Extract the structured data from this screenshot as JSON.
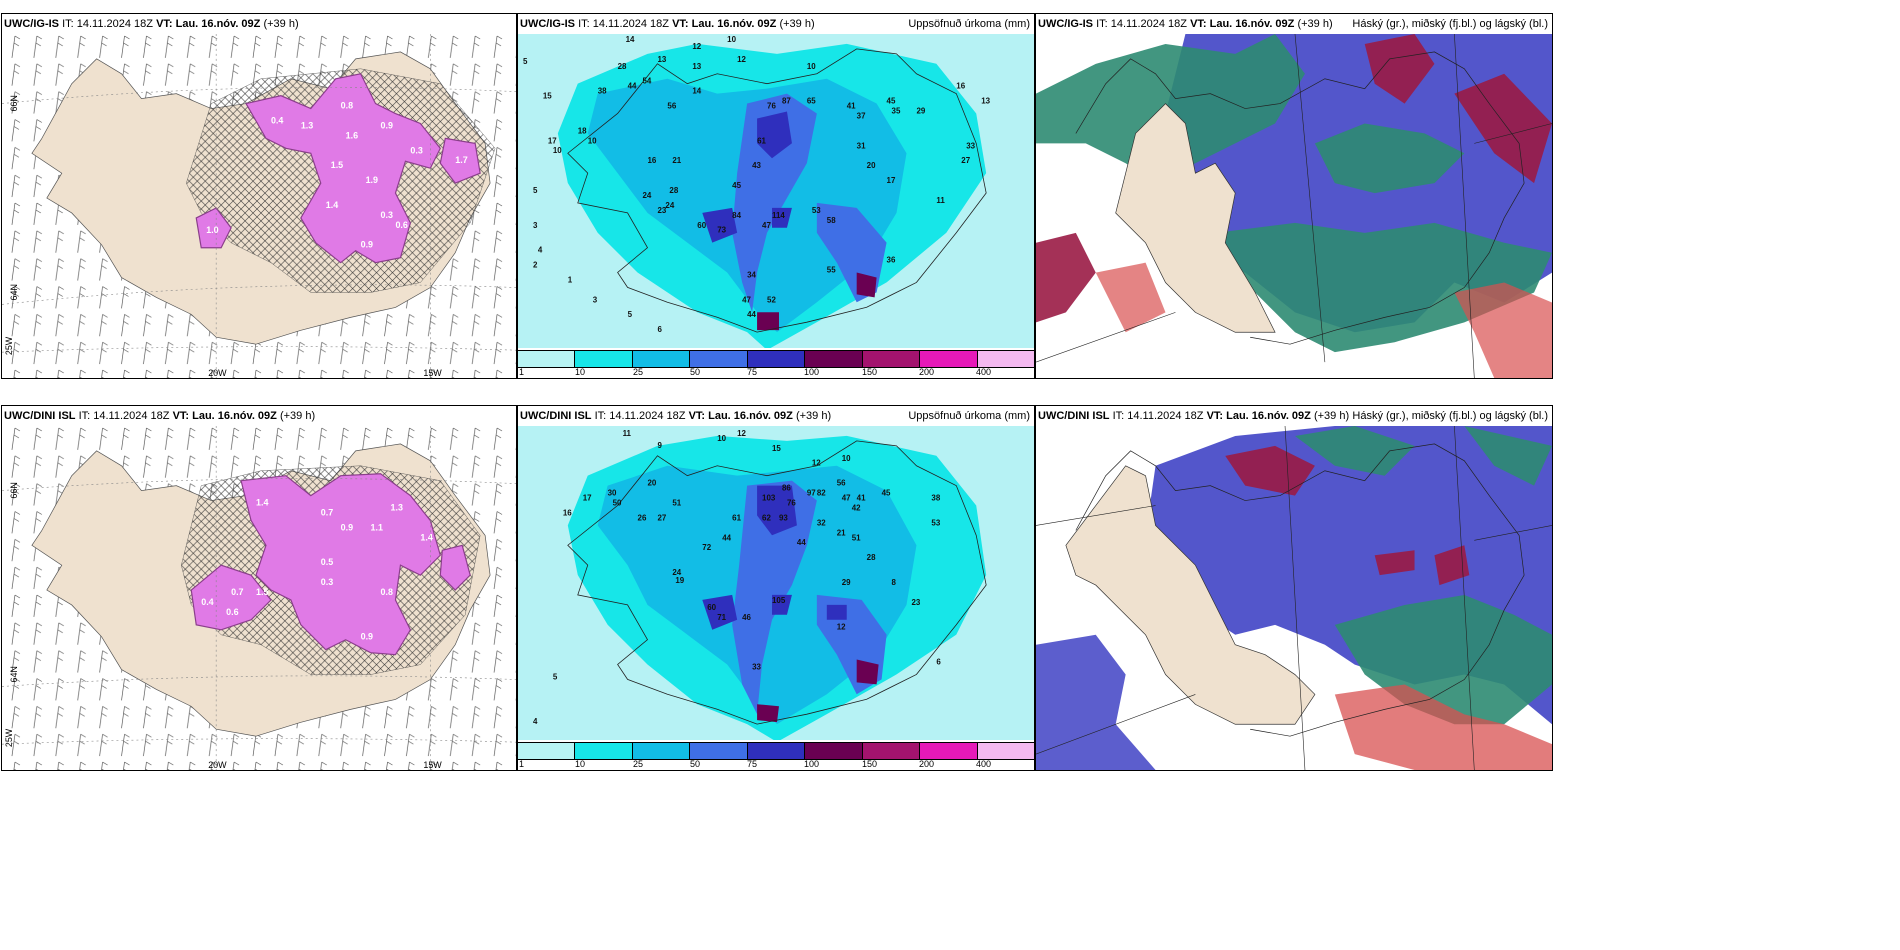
{
  "panels": {
    "p11": {
      "model": "UWC/IG-IS",
      "it_label": "IT:",
      "it": "14.11.2024 18Z",
      "vt_label": "VT:",
      "vt": "Lau. 16.nóv. 09Z",
      "lead": "(+39 h)",
      "right": ""
    },
    "p12": {
      "model": "UWC/IG-IS",
      "it_label": "IT:",
      "it": "14.11.2024 18Z",
      "vt_label": "VT:",
      "vt": "Lau. 16.nóv. 09Z",
      "lead": "(+39 h)",
      "right": "Uppsöfnuð úrkoma (mm)"
    },
    "p13": {
      "model": "UWC/IG-IS",
      "it_label": "IT:",
      "it": "14.11.2024 18Z",
      "vt_label": "VT:",
      "vt": "Lau. 16.nóv. 09Z",
      "lead": "(+39 h)",
      "right": "Háský (gr.), miðský (fj.bl.) og lágský (bl.)"
    },
    "p21": {
      "model": "UWC/DINI ISL",
      "it_label": "IT:",
      "it": "14.11.2024 18Z",
      "vt_label": "VT:",
      "vt": "Lau. 16.nóv. 09Z",
      "lead": "(+39 h)",
      "right": ""
    },
    "p22": {
      "model": "UWC/DINI ISL",
      "it_label": "IT:",
      "it": "14.11.2024 18Z",
      "vt_label": "VT:",
      "vt": "Lau. 16.nóv. 09Z",
      "lead": "(+39 h)",
      "right": "Uppsöfnuð úrkoma (mm)"
    },
    "p23": {
      "model": "UWC/DINI ISL",
      "it_label": "IT:",
      "it": "14.11.2024 18Z",
      "vt_label": "VT:",
      "vt": "Lau. 16.nóv. 09Z",
      "lead": "(+39 h)",
      "right": "Háský (gr.), miðský (fj.bl.) og lágský (bl.)"
    }
  },
  "grid_labels": {
    "lat66": "66N",
    "lat64": "64N",
    "lon25": "25W",
    "lon20": "20W",
    "lon15": "15W"
  },
  "legend": {
    "ticks": [
      "1",
      "10",
      "25",
      "50",
      "75",
      "100",
      "150",
      "200",
      "400"
    ],
    "colors": [
      "#b8f4f4",
      "#17e6e8",
      "#12bde6",
      "#3f6fe6",
      "#2f2fbd",
      "#6a0052",
      "#a3136e",
      "#e619b8",
      "#f4b9f0"
    ]
  },
  "colors": {
    "land": "#efe1cf",
    "snow": "#e07ae6",
    "snow_dark": "#8a3f8a",
    "sea_precip": "#b6f2f4",
    "high_cloud": "#2e8b72",
    "mid_cloud": "#4a4dc8",
    "low_cloud": "#9a1b45"
  },
  "values_top_precip": [
    "14",
    "12",
    "10",
    "12",
    "13",
    "13",
    "15",
    "5",
    "28",
    "38",
    "44",
    "56",
    "14",
    "54",
    "18",
    "10",
    "61",
    "76",
    "87",
    "43",
    "65",
    "10",
    "16",
    "13",
    "29",
    "35",
    "45",
    "31",
    "41",
    "37",
    "33",
    "17",
    "27",
    "20",
    "24",
    "21",
    "16",
    "28",
    "24",
    "23",
    "45",
    "47",
    "11",
    "53",
    "58",
    "60",
    "73",
    "84",
    "114",
    "36",
    "55",
    "34",
    "47",
    "52",
    "44",
    "17",
    "10",
    "5",
    "4",
    "3",
    "2",
    "1",
    "3",
    "5",
    "6"
  ],
  "values_bottom_precip": [
    "11",
    "9",
    "10",
    "12",
    "15",
    "12",
    "10",
    "17",
    "16",
    "30",
    "50",
    "51",
    "20",
    "26",
    "27",
    "24",
    "19",
    "72",
    "44",
    "61",
    "103",
    "86",
    "97",
    "76",
    "62",
    "93",
    "82",
    "56",
    "47",
    "41",
    "45",
    "42",
    "38",
    "53",
    "32",
    "21",
    "28",
    "51",
    "60",
    "33",
    "44",
    "105",
    "71",
    "46",
    "29",
    "12",
    "23",
    "8",
    "6",
    "5",
    "4"
  ],
  "values_top_snow": [
    "0.4",
    "1.3",
    "0.8",
    "1.6",
    "0.9",
    "1.5",
    "1.9",
    "0.3",
    "1.0",
    "0.6",
    "1.4",
    "0.9",
    "0.3",
    "1.7"
  ],
  "values_bottom_snow": [
    "1.4",
    "0.7",
    "0.9",
    "1.3",
    "0.5",
    "1.1",
    "0.8",
    "0.3",
    "1.5",
    "0.4",
    "0.6",
    "0.9",
    "1.4",
    "0.7"
  ]
}
